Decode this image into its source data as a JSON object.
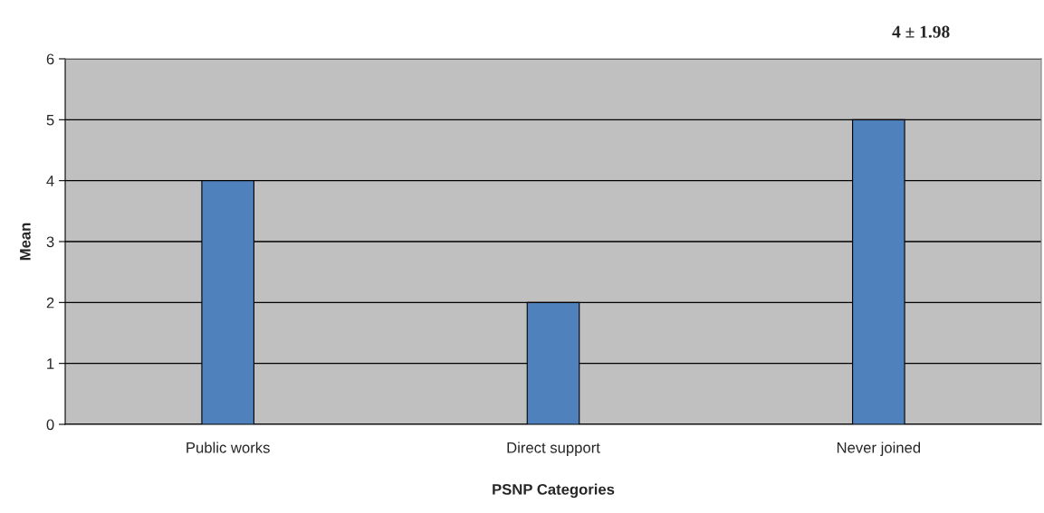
{
  "chart_data": {
    "type": "bar",
    "xlabel": "PSNP Categories",
    "ylabel": "Mean",
    "categories": [
      "Public works",
      "Direct support",
      "Never joined"
    ],
    "values": [
      4,
      2,
      5
    ],
    "color": "#4f81bd",
    "ylim": [
      0,
      6
    ],
    "yticks": [
      0,
      1,
      2,
      3,
      4,
      5,
      6
    ],
    "grid": "y",
    "annotations": [
      "4 ± 1.98"
    ]
  }
}
